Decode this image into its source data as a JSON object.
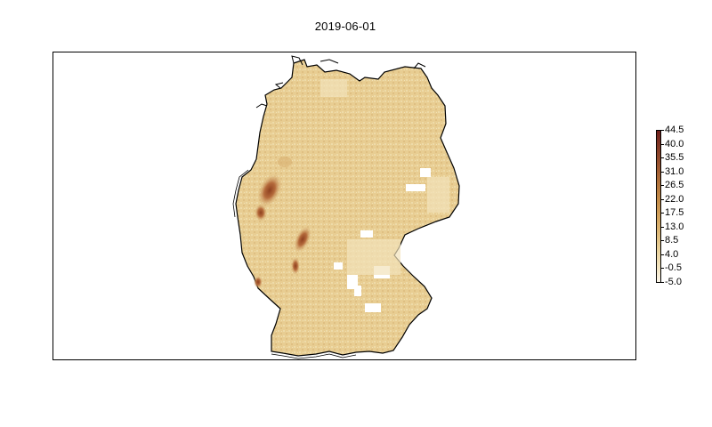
{
  "title": "2019-06-01",
  "map": {
    "region": "Germany",
    "fill_base": "#e9cf97",
    "hotspot_color": "#8e3f1f",
    "outline_color": "#000000",
    "nodata_color": "#ffffff"
  },
  "legend": {
    "min": -5.0,
    "max": 44.5,
    "ticks": [
      "44.5",
      "40.0",
      "35.5",
      "31.0",
      "26.5",
      "22.0",
      "17.5",
      "13.0",
      "8.5",
      "4.0",
      "-0.5",
      "-5.0"
    ],
    "colors": [
      "#fcf8ee",
      "#f3e4bf",
      "#ead29b",
      "#dfba78",
      "#d3a25c",
      "#c48b48",
      "#b1713a",
      "#9c5530",
      "#853b26",
      "#701f1c"
    ]
  }
}
